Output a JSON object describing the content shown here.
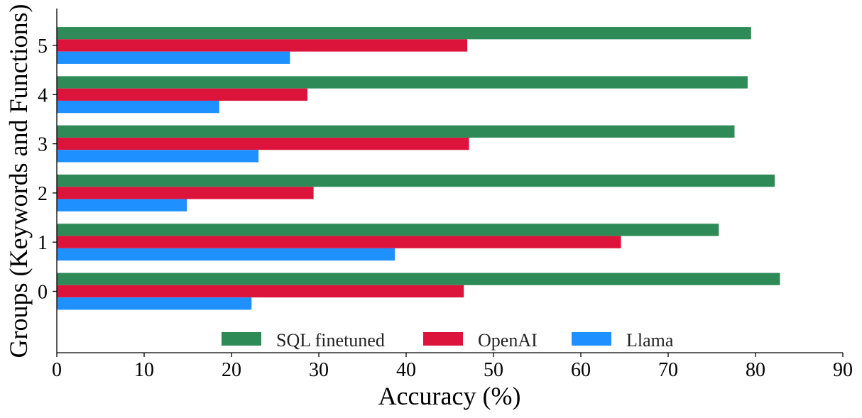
{
  "chart_data": {
    "type": "bar",
    "orientation": "horizontal",
    "categories": [
      "0",
      "1",
      "2",
      "3",
      "4",
      "5"
    ],
    "series": [
      {
        "name": "SQL finetuned",
        "color": "#2e8b57",
        "values": [
          82.8,
          75.8,
          82.2,
          77.6,
          79.1,
          79.5
        ]
      },
      {
        "name": "OpenAI",
        "color": "#dc143c",
        "values": [
          46.6,
          64.6,
          29.4,
          47.2,
          28.7,
          47.0
        ]
      },
      {
        "name": "Llama",
        "color": "#1e90ff",
        "values": [
          22.3,
          38.7,
          14.9,
          23.1,
          18.6,
          26.7
        ]
      }
    ],
    "xlabel": "Accuracy (%)",
    "ylabel": "Groups (Keywords and Functions)",
    "xlim": [
      0,
      90
    ],
    "xticks": [
      "0",
      "10",
      "20",
      "30",
      "40",
      "50",
      "60",
      "70",
      "80",
      "90"
    ],
    "grid": false,
    "legend_position": "bottom-center"
  }
}
